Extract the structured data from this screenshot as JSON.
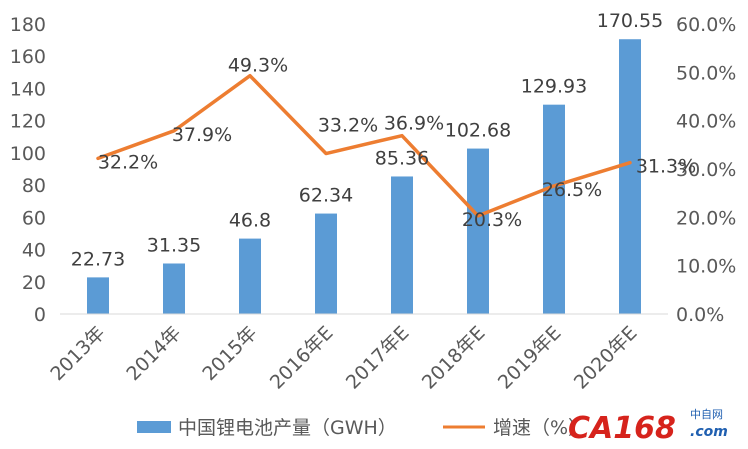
{
  "chart_data": {
    "type": "bar",
    "categories": [
      "2013年",
      "2014年",
      "2015年",
      "2016年E",
      "2017年E",
      "2018年E",
      "2019年E",
      "2020年E"
    ],
    "series": [
      {
        "name": "中国锂电池产量（GWH）",
        "type": "bar",
        "axis": "left",
        "values": [
          22.73,
          31.35,
          46.8,
          62.34,
          85.36,
          102.68,
          129.93,
          170.55
        ],
        "labels": [
          "22.73",
          "31.35",
          "46.8",
          "62.34",
          "85.36",
          "102.68",
          "129.93",
          "170.55"
        ],
        "color": "#5b9bd5"
      },
      {
        "name": "增速（%）",
        "type": "line",
        "axis": "right",
        "values": [
          32.2,
          37.9,
          49.3,
          33.2,
          36.9,
          20.3,
          26.5,
          31.3
        ],
        "labels": [
          "32.2%",
          "37.9%",
          "49.3%",
          "33.2%",
          "36.9%",
          "20.3%",
          "26.5%",
          "31.3%"
        ],
        "color": "#ed7d31"
      }
    ],
    "y_left": {
      "min": 0,
      "max": 180,
      "step": 20,
      "ticks": [
        "0",
        "20",
        "40",
        "60",
        "80",
        "100",
        "120",
        "140",
        "160",
        "180"
      ]
    },
    "y_right": {
      "min": 0,
      "max": 60,
      "step": 10,
      "ticks": [
        "0.0%",
        "10.0%",
        "20.0%",
        "30.0%",
        "40.0%",
        "50.0%",
        "60.0%"
      ]
    },
    "grid": false,
    "legend": "bottom"
  },
  "watermark": {
    "brand": "CA168",
    "brand_cn": "中自网",
    "site": ".com"
  }
}
